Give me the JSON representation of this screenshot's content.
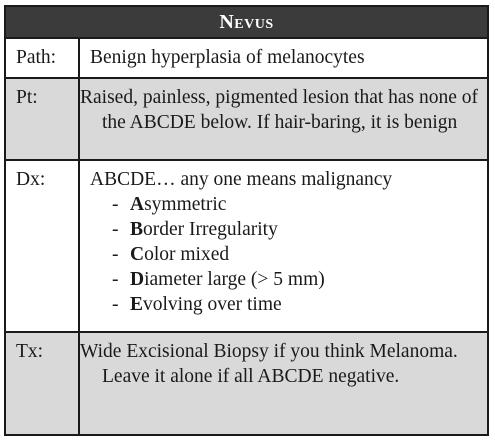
{
  "title": "Nevus",
  "rows": {
    "path": {
      "label": "Path:",
      "text": "Benign hyperplasia of melanocytes"
    },
    "pt": {
      "label": "Pt:",
      "text": "Raised, painless, pigmented lesion that has none of the ABCDE below. If hair-baring, it is benign"
    },
    "dx": {
      "label": "Dx:",
      "intro": "ABCDE… any one means malignancy",
      "items": [
        {
          "letter": "A",
          "rest": "symmetric"
        },
        {
          "letter": "B",
          "rest": "order Irregularity"
        },
        {
          "letter": "C",
          "rest": "olor mixed"
        },
        {
          "letter": "D",
          "rest": "iameter large (> 5 mm)"
        },
        {
          "letter": "E",
          "rest": "volving over time"
        }
      ]
    },
    "tx": {
      "label": "Tx:",
      "text": "Wide Excisional Biopsy if you think Melanoma. Leave it alone if all ABCDE negative."
    }
  },
  "colors": {
    "title_bg": "#3b3b3b",
    "title_fg": "#ffffff",
    "shaded_row": "#d9d9d9",
    "border": "#1a1a1a"
  }
}
